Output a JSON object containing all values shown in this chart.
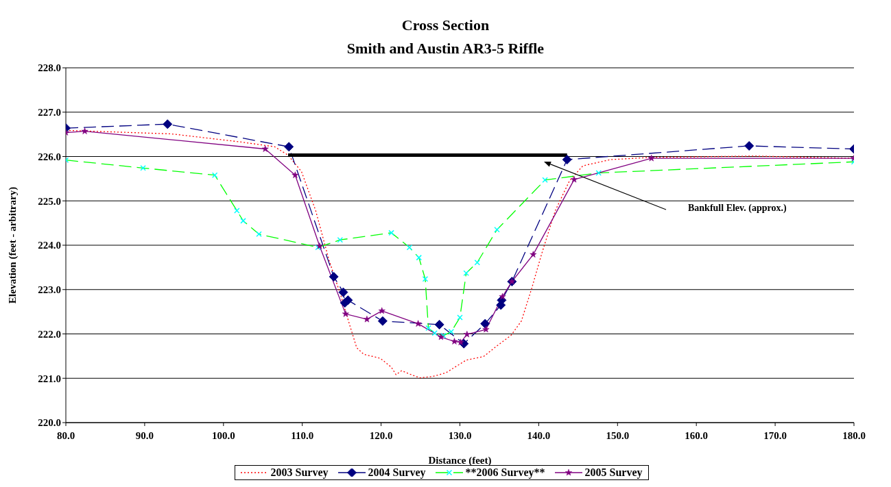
{
  "chart_data": {
    "type": "line",
    "title": "Cross Section",
    "subtitle": "Smith and Austin AR3-5 Riffle",
    "xlabel": "Distance (feet)",
    "ylabel": "Elevation (feet - arbitrary)",
    "xlim": [
      80,
      180
    ],
    "xticks": [
      {
        "value": 80,
        "label": "80.0"
      },
      {
        "value": 90,
        "label": "90.0"
      },
      {
        "value": 100,
        "label": "100.0"
      },
      {
        "value": 110,
        "label": "110.0"
      },
      {
        "value": 120,
        "label": "120.0"
      },
      {
        "value": 130,
        "label": "130.0"
      },
      {
        "value": 140,
        "label": "140.0"
      },
      {
        "value": 150,
        "label": "150.0"
      },
      {
        "value": 160,
        "label": "160.0"
      },
      {
        "value": 170,
        "label": "170.0"
      },
      {
        "value": 180,
        "label": "180.0"
      }
    ],
    "ylim": [
      220,
      228
    ],
    "yticks": [
      {
        "value": 220,
        "label": "220.0"
      },
      {
        "value": 221,
        "label": "221.0"
      },
      {
        "value": 222,
        "label": "222.0"
      },
      {
        "value": 223,
        "label": "223.0"
      },
      {
        "value": 224,
        "label": "224.0"
      },
      {
        "value": 225,
        "label": "225.0"
      },
      {
        "value": 226,
        "label": "226.0"
      },
      {
        "value": 227,
        "label": "227.0"
      },
      {
        "value": 228,
        "label": "228.0"
      }
    ],
    "grid": "y",
    "legend": "bottom",
    "annotations": [
      "Bankfull Elev. (approx.)"
    ],
    "series": [
      {
        "name": "2003 Survey",
        "color": "#ff0000",
        "marker": "none",
        "line_style": "dotted",
        "x": [
          80,
          93.4,
          102.1,
          106.5,
          108.2,
          109.9,
          111.7,
          113.4,
          114.9,
          116.0,
          116.9,
          117.8,
          119.9,
          121.3,
          121.9,
          122.6,
          123.7,
          124.9,
          126.5,
          128.2,
          130.8,
          133.0,
          134.7,
          136.5,
          137.8,
          139.1,
          140.4,
          142.1,
          143.9,
          145.6,
          149.1,
          154.3,
          167.4,
          180
        ],
        "values": [
          226.59,
          226.51,
          226.33,
          226.22,
          226.03,
          225.66,
          224.78,
          223.66,
          222.86,
          222.21,
          221.69,
          221.54,
          221.45,
          221.25,
          221.08,
          221.17,
          221.09,
          221.01,
          221.04,
          221.12,
          221.41,
          221.49,
          221.73,
          221.97,
          222.29,
          223.02,
          223.82,
          224.78,
          225.45,
          225.79,
          225.93,
          225.98,
          226.01,
          225.96
        ]
      },
      {
        "name": "2004 Survey",
        "color": "#000080",
        "marker": "diamond",
        "line_style": "dashed",
        "x": [
          80,
          92.9,
          108.3,
          114.0,
          115.2,
          115.4,
          115.8,
          120.2,
          127.4,
          130.5,
          133.2,
          135.2,
          135.3,
          136.6,
          143.6,
          166.7,
          180
        ],
        "values": [
          226.64,
          226.73,
          226.22,
          223.29,
          222.94,
          222.7,
          222.76,
          222.29,
          222.21,
          221.78,
          222.23,
          222.65,
          222.76,
          223.18,
          225.93,
          226.24,
          226.17
        ]
      },
      {
        "name": "**2006 Survey**",
        "color": "#00ff00",
        "marker": "cross",
        "line_style": "dashed",
        "x": [
          80,
          89.8,
          98.9,
          101.7,
          102.5,
          104.5,
          112.0,
          114.8,
          121.3,
          123.6,
          124.8,
          125.6,
          126.0,
          126.8,
          127.9,
          128.9,
          130.0,
          130.8,
          132.2,
          134.7,
          140.8,
          147.6,
          180
        ],
        "values": [
          225.92,
          225.74,
          225.58,
          224.78,
          224.55,
          224.25,
          223.95,
          224.12,
          224.28,
          223.95,
          223.72,
          223.24,
          222.13,
          222.02,
          221.96,
          222.05,
          222.37,
          223.37,
          223.61,
          224.35,
          225.47,
          225.63,
          225.88
        ]
      },
      {
        "name": "2005 Survey",
        "color": "#800080",
        "marker": "star",
        "line_style": "solid",
        "x": [
          80,
          82.4,
          105.3,
          109.1,
          112.2,
          115.5,
          118.2,
          120.1,
          124.7,
          127.6,
          129.3,
          130.1,
          130.9,
          133.3,
          135.4,
          136.6,
          139.3,
          144.5,
          154.3,
          180
        ],
        "values": [
          226.54,
          226.57,
          226.17,
          225.58,
          223.98,
          222.45,
          222.33,
          222.52,
          222.23,
          221.93,
          221.83,
          221.81,
          221.99,
          222.1,
          222.84,
          223.18,
          223.79,
          225.48,
          225.96,
          225.96
        ]
      },
      {
        "color": "#000000",
        "marker": "none",
        "line_style": "solid",
        "x": [
          108.2,
          143.6
        ],
        "values": [
          226.03,
          226.03
        ]
      }
    ]
  }
}
